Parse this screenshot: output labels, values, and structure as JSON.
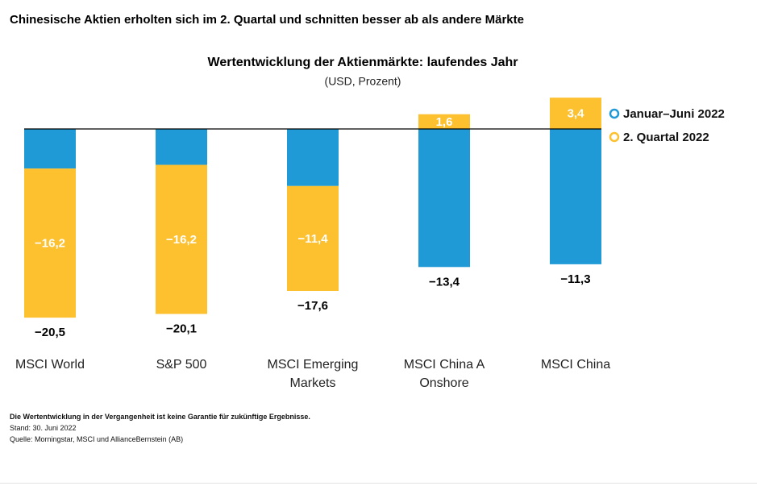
{
  "chart_data": {
    "type": "bar",
    "page_title": "Chinesische Aktien erholten sich im 2. Quartal und schnitten besser ab als andere Märkte",
    "title": "Wertentwicklung der Aktienmärkte: laufendes Jahr",
    "subtitle": "(USD, Prozent)",
    "categories": [
      "MSCI World",
      "S&P 500",
      "MSCI Emerging Markets",
      "MSCI China A Onshore",
      "MSCI China"
    ],
    "series": [
      {
        "name": "Januar–Juni 2022",
        "color": "#1f9ad6",
        "values": [
          -20.5,
          -20.1,
          -17.6,
          -13.4,
          -11.3
        ],
        "value_labels": [
          "−20,5",
          "−20,1",
          "−17,6",
          "−13,4",
          "−11,3"
        ]
      },
      {
        "name": "2. Quartal 2022",
        "color": "#fdc02f",
        "values": [
          -16.2,
          -16.2,
          -11.4,
          1.6,
          3.4
        ],
        "value_labels": [
          "−16,2",
          "−16,2",
          "−11,4",
          "1,6",
          "3,4"
        ]
      }
    ],
    "notes": [
      "Die Wertentwicklung in der Vergangenheit ist keine Garantie für zukünftige Ergebnisse.",
      "Stand: 30. Juni 2022",
      "Quelle: Morningstar, MSCI und AllianceBernstein (AB)"
    ]
  }
}
